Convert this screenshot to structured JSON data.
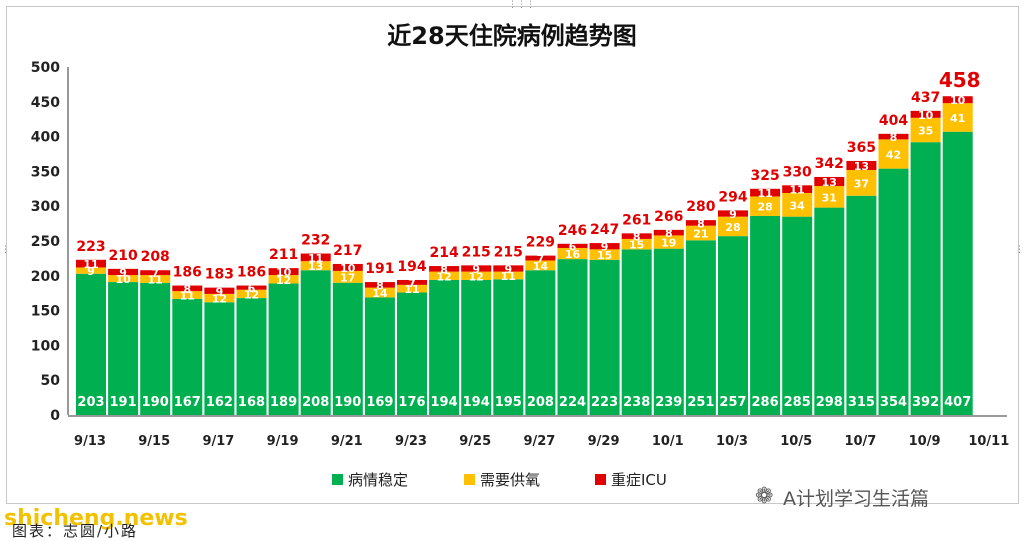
{
  "chart_data": {
    "type": "bar",
    "stacked": true,
    "title": "近28天住院病例趋势图",
    "ylim": [
      0,
      500
    ],
    "yticks": [
      0,
      50,
      100,
      150,
      200,
      250,
      300,
      350,
      400,
      450,
      500
    ],
    "x_tick_labels": [
      "9/13",
      "9/15",
      "9/17",
      "9/19",
      "9/21",
      "9/23",
      "9/25",
      "9/27",
      "9/29",
      "10/1",
      "10/3",
      "10/5",
      "10/7",
      "10/9",
      "10/11"
    ],
    "series": [
      {
        "name": "病情稳定",
        "color": "#00b050",
        "values": [
          203,
          191,
          190,
          167,
          162,
          168,
          189,
          208,
          190,
          169,
          176,
          194,
          194,
          195,
          208,
          224,
          223,
          238,
          239,
          251,
          257,
          286,
          285,
          298,
          315,
          354,
          392,
          407
        ]
      },
      {
        "name": "需要供氧",
        "color": "#ffc000",
        "values": [
          9,
          10,
          11,
          11,
          12,
          12,
          12,
          13,
          17,
          14,
          11,
          12,
          12,
          11,
          14,
          16,
          15,
          15,
          19,
          21,
          28,
          28,
          34,
          31,
          37,
          42,
          35,
          41
        ]
      },
      {
        "name": "重症ICU",
        "color": "#e00000",
        "values": [
          11,
          9,
          7,
          8,
          9,
          6,
          10,
          11,
          10,
          8,
          7,
          8,
          9,
          9,
          7,
          6,
          9,
          8,
          8,
          8,
          9,
          11,
          11,
          13,
          13,
          8,
          10,
          10
        ]
      }
    ],
    "totals": [
      223,
      210,
      208,
      186,
      183,
      186,
      211,
      232,
      217,
      191,
      194,
      214,
      215,
      215,
      229,
      246,
      247,
      261,
      266,
      280,
      294,
      325,
      330,
      342,
      365,
      404,
      437,
      458
    ],
    "legend_position": "bottom"
  },
  "watermark": {
    "logo": "❁",
    "text": "A计划学习生活篇"
  },
  "site_mark": "shicheng.news",
  "caption": "图表：志圆/小路"
}
